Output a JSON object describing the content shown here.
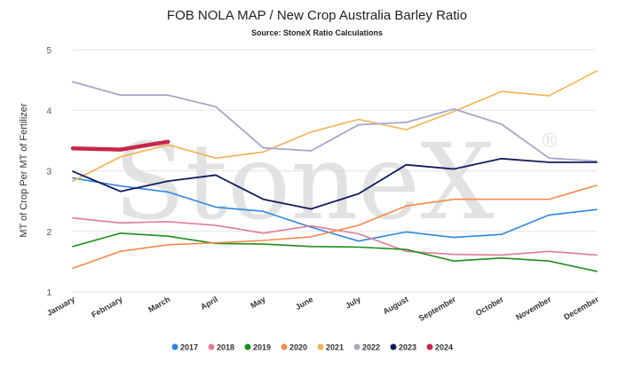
{
  "watermark": {
    "text": "StoneX",
    "mark": "®"
  },
  "chart_data": {
    "type": "line",
    "title": "FOB NOLA MAP / New Crop Australia Barley Ratio",
    "subtitle": "Source: StoneX Ratio Calculations",
    "ylabel": "MT of Crop Per MT of Fertilizer",
    "xlabel": "",
    "ylim": [
      1,
      5
    ],
    "yticks": [
      1,
      2,
      3,
      4,
      5
    ],
    "grid": true,
    "legend_position": "bottom",
    "categories": [
      "January",
      "February",
      "March",
      "April",
      "May",
      "June",
      "July",
      "August",
      "September",
      "October",
      "November",
      "December"
    ],
    "series": [
      {
        "name": "2017",
        "color": "#2e86de",
        "width": 1.6,
        "values": [
          2.88,
          2.75,
          2.65,
          2.4,
          2.33,
          2.07,
          1.84,
          1.99,
          1.9,
          1.95,
          2.27,
          2.36
        ]
      },
      {
        "name": "2018",
        "color": "#e07b91",
        "width": 1.6,
        "values": [
          2.22,
          2.14,
          2.16,
          2.1,
          1.97,
          2.09,
          1.96,
          1.67,
          1.62,
          1.61,
          1.67,
          1.61
        ]
      },
      {
        "name": "2019",
        "color": "#1e8c1e",
        "width": 1.6,
        "values": [
          1.75,
          1.97,
          1.92,
          1.8,
          1.79,
          1.75,
          1.74,
          1.7,
          1.51,
          1.56,
          1.51,
          1.34
        ]
      },
      {
        "name": "2020",
        "color": "#f5894a",
        "width": 1.6,
        "values": [
          1.39,
          1.67,
          1.78,
          1.81,
          1.85,
          1.91,
          2.1,
          2.42,
          2.53,
          2.53,
          2.53,
          2.76
        ]
      },
      {
        "name": "2021",
        "color": "#f2b251",
        "width": 1.6,
        "values": [
          2.83,
          3.23,
          3.43,
          3.21,
          3.31,
          3.64,
          3.85,
          3.68,
          3.98,
          4.31,
          4.24,
          4.65
        ]
      },
      {
        "name": "2022",
        "color": "#a6a6c8",
        "width": 1.8,
        "values": [
          4.47,
          4.25,
          4.25,
          4.06,
          3.38,
          3.33,
          3.76,
          3.8,
          4.02,
          3.77,
          3.21,
          3.16
        ]
      },
      {
        "name": "2023",
        "color": "#141a5c",
        "width": 1.8,
        "values": [
          2.99,
          2.66,
          2.83,
          2.93,
          2.53,
          2.37,
          2.62,
          3.1,
          3.03,
          3.2,
          3.14,
          3.14
        ]
      },
      {
        "name": "2024",
        "color": "#c8264b",
        "width": 4.5,
        "values": [
          3.37,
          3.35,
          3.48,
          null,
          null,
          null,
          null,
          null,
          null,
          null,
          null,
          null
        ]
      }
    ]
  }
}
